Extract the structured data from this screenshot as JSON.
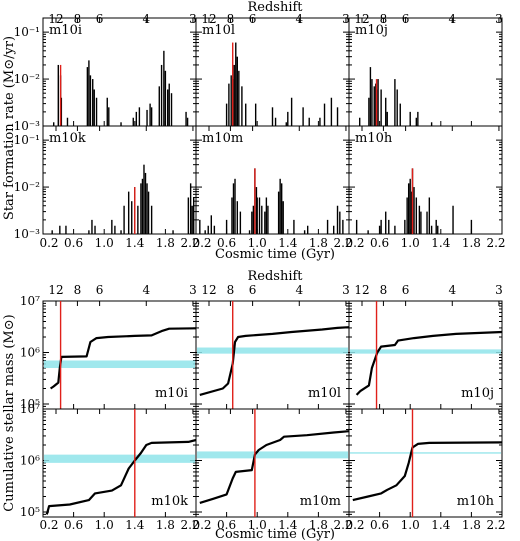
{
  "top": {
    "xlabel": "Cosmic time (Gyr)",
    "ylabel": "Star formation rate (M⊙/yr)",
    "redshift_label": "Redshift",
    "x_ticks": [
      "0.2",
      "0.6",
      "1.0",
      "1.4",
      "1.8",
      "2.2"
    ],
    "z_ticks": [
      "12",
      "8",
      "6",
      "4",
      "3"
    ],
    "y_ticks": [
      "10⁻¹",
      "10⁻²",
      "10⁻³"
    ]
  },
  "bottom": {
    "xlabel": "Cosmic time (Gyr)",
    "ylabel": "Cumulative stellar mass (M⊙)",
    "redshift_label": "Redshift",
    "x_ticks": [
      "0.2",
      "0.6",
      "1.0",
      "1.4",
      "1.8",
      "2.2"
    ],
    "z_ticks": [
      "12",
      "8",
      "6",
      "4",
      "3"
    ],
    "y_ticks": [
      "10⁷",
      "10⁶",
      "10⁵"
    ]
  },
  "chart_data": [
    {
      "type": "bar",
      "title": "",
      "xlabel": "Cosmic time (Gyr)",
      "ylabel": "Star formation rate (M⊙/yr)",
      "xlim": [
        0.2,
        2.2
      ],
      "ylim": [
        0.001,
        0.2
      ],
      "yscale": "log",
      "secondary_x": {
        "label": "Redshift",
        "ticks": [
          {
            "z": "12",
            "t": 0.37
          },
          {
            "z": "8",
            "t": 0.65
          },
          {
            "z": "6",
            "t": 0.94
          },
          {
            "z": "4",
            "t": 1.55
          },
          {
            "z": "3",
            "t": 2.16
          }
        ]
      },
      "panels": [
        {
          "name": "m10i",
          "red_t": 0.43,
          "bursts": [
            [
              0.34,
              0.0012
            ],
            [
              0.4,
              0.02
            ],
            [
              0.43,
              0.012
            ],
            [
              0.44,
              0.004
            ],
            [
              0.52,
              0.0015
            ],
            [
              0.78,
              0.018
            ],
            [
              0.8,
              0.025
            ],
            [
              0.82,
              0.012
            ],
            [
              0.85,
              0.01
            ],
            [
              0.87,
              0.006
            ],
            [
              0.9,
              0.004
            ],
            [
              1.04,
              0.004
            ],
            [
              1.06,
              0.0025
            ],
            [
              1.22,
              0.0012
            ],
            [
              1.38,
              0.0015
            ],
            [
              1.42,
              0.002
            ],
            [
              1.46,
              0.0025
            ],
            [
              1.56,
              0.0022
            ],
            [
              1.6,
              0.003
            ],
            [
              1.62,
              0.0025
            ],
            [
              1.72,
              0.007
            ],
            [
              1.75,
              0.02
            ],
            [
              1.78,
              0.04
            ],
            [
              1.8,
              0.015
            ],
            [
              1.83,
              0.006
            ],
            [
              1.85,
              0.008
            ],
            [
              1.88,
              0.005
            ],
            [
              2.07,
              0.002
            ],
            [
              2.09,
              0.0015
            ]
          ]
        },
        {
          "name": "m10l",
          "red_t": 0.68,
          "bursts": [
            [
              0.6,
              0.003
            ],
            [
              0.63,
              0.008
            ],
            [
              0.66,
              0.012
            ],
            [
              0.68,
              0.01
            ],
            [
              0.7,
              0.02
            ],
            [
              0.72,
              0.06
            ],
            [
              0.74,
              0.03
            ],
            [
              0.76,
              0.015
            ],
            [
              0.8,
              0.007
            ],
            [
              0.85,
              0.003
            ],
            [
              0.98,
              0.003
            ],
            [
              1.2,
              0.0025
            ],
            [
              1.24,
              0.0015
            ],
            [
              1.38,
              0.0012
            ],
            [
              1.4,
              0.002
            ],
            [
              1.45,
              0.004
            ],
            [
              1.6,
              0.0025
            ],
            [
              1.68,
              0.0015
            ],
            [
              1.82,
              0.0015
            ],
            [
              1.88,
              0.003
            ],
            [
              1.97,
              0.004
            ],
            [
              2.05,
              0.0025
            ]
          ]
        },
        {
          "name": "m10j",
          "red_t": 0.56,
          "bursts": [
            [
              0.34,
              0.0015
            ],
            [
              0.46,
              0.004
            ],
            [
              0.48,
              0.018
            ],
            [
              0.5,
              0.01
            ],
            [
              0.53,
              0.007
            ],
            [
              0.55,
              0.008
            ],
            [
              0.56,
              0.006
            ],
            [
              0.58,
              0.01
            ],
            [
              0.62,
              0.006
            ],
            [
              0.68,
              0.004
            ],
            [
              0.7,
              0.002
            ],
            [
              0.8,
              0.01
            ],
            [
              0.83,
              0.006
            ],
            [
              0.87,
              0.003
            ],
            [
              1.0,
              0.002
            ],
            [
              1.08,
              0.0015
            ],
            [
              1.1,
              0.002
            ],
            [
              1.28,
              0.0012
            ]
          ]
        },
        {
          "name": "m10k",
          "red_t": 1.4,
          "bursts": [
            [
              0.32,
              0.0012
            ],
            [
              0.42,
              0.0015
            ],
            [
              0.5,
              0.0015
            ],
            [
              0.8,
              0.0012
            ],
            [
              0.84,
              0.002
            ],
            [
              0.88,
              0.0015
            ],
            [
              1.1,
              0.002
            ],
            [
              1.14,
              0.0015
            ],
            [
              1.22,
              0.0012
            ],
            [
              1.26,
              0.004
            ],
            [
              1.32,
              0.008
            ],
            [
              1.36,
              0.005
            ],
            [
              1.4,
              0.01
            ],
            [
              1.44,
              0.004
            ],
            [
              1.48,
              0.012
            ],
            [
              1.5,
              0.015
            ],
            [
              1.52,
              0.03
            ],
            [
              1.54,
              0.02
            ],
            [
              1.56,
              0.012
            ],
            [
              1.58,
              0.008
            ],
            [
              1.62,
              0.004
            ],
            [
              1.9,
              0.0012
            ],
            [
              2.1,
              0.006
            ],
            [
              2.13,
              0.012
            ],
            [
              2.15,
              0.004
            ],
            [
              2.17,
              0.006
            ]
          ]
        },
        {
          "name": "m10m",
          "red_t": 0.97,
          "bursts": [
            [
              0.25,
              0.002
            ],
            [
              0.32,
              0.0012
            ],
            [
              0.36,
              0.0015
            ],
            [
              0.4,
              0.0025
            ],
            [
              0.44,
              0.0015
            ],
            [
              0.6,
              0.002
            ],
            [
              0.67,
              0.006
            ],
            [
              0.69,
              0.012
            ],
            [
              0.71,
              0.015
            ],
            [
              0.74,
              0.005
            ],
            [
              0.78,
              0.003
            ],
            [
              0.9,
              0.0012
            ],
            [
              0.93,
              0.003
            ],
            [
              0.95,
              0.004
            ],
            [
              0.97,
              0.025
            ],
            [
              0.99,
              0.01
            ],
            [
              1.0,
              0.006
            ],
            [
              1.03,
              0.006
            ],
            [
              1.06,
              0.004
            ],
            [
              1.1,
              0.003
            ],
            [
              1.12,
              0.006
            ],
            [
              1.14,
              0.004
            ],
            [
              1.28,
              0.008
            ],
            [
              1.3,
              0.015
            ],
            [
              1.32,
              0.012
            ],
            [
              1.34,
              0.005
            ],
            [
              1.48,
              0.002
            ],
            [
              1.62,
              0.0012
            ],
            [
              1.66,
              0.0015
            ],
            [
              1.92,
              0.002
            ],
            [
              2.0,
              0.0015
            ],
            [
              2.05,
              0.004
            ],
            [
              2.08,
              0.003
            ],
            [
              2.12,
              0.002
            ]
          ]
        },
        {
          "name": "m10h",
          "red_t": 1.03,
          "bursts": [
            [
              0.3,
              0.002
            ],
            [
              0.45,
              0.0012
            ],
            [
              0.6,
              0.0015
            ],
            [
              0.62,
              0.002
            ],
            [
              0.68,
              0.003
            ],
            [
              0.72,
              0.002
            ],
            [
              0.8,
              0.0015
            ],
            [
              0.93,
              0.002
            ],
            [
              0.96,
              0.006
            ],
            [
              0.98,
              0.012
            ],
            [
              1.0,
              0.015
            ],
            [
              1.02,
              0.008
            ],
            [
              1.03,
              0.025
            ],
            [
              1.05,
              0.01
            ],
            [
              1.08,
              0.006
            ],
            [
              1.12,
              0.004
            ],
            [
              1.14,
              0.003
            ],
            [
              1.22,
              0.003
            ],
            [
              1.25,
              0.006
            ],
            [
              1.28,
              0.0015
            ],
            [
              1.34,
              0.002
            ],
            [
              1.36,
              0.0015
            ],
            [
              1.56,
              0.004
            ],
            [
              1.8,
              0.002
            ]
          ]
        }
      ]
    },
    {
      "type": "line",
      "title": "",
      "xlabel": "Cosmic time (Gyr)",
      "ylabel": "Cumulative stellar mass (M⊙)",
      "xlim": [
        0.2,
        2.2
      ],
      "ylim": [
        80000,
        10000000
      ],
      "yscale": "log",
      "secondary_x": {
        "label": "Redshift",
        "ticks": [
          {
            "z": "12",
            "t": 0.37
          },
          {
            "z": "8",
            "t": 0.65
          },
          {
            "z": "6",
            "t": 0.94
          },
          {
            "z": "4",
            "t": 1.55
          },
          {
            "z": "3",
            "t": 2.16
          }
        ]
      },
      "panels": [
        {
          "name": "m10i",
          "red_t": 0.43,
          "band": [
            500000,
            700000
          ],
          "curve": [
            [
              0.3,
              200000
            ],
            [
              0.34,
              220000
            ],
            [
              0.4,
              260000
            ],
            [
              0.42,
              500000
            ],
            [
              0.44,
              820000
            ],
            [
              0.77,
              840000
            ],
            [
              0.82,
              1600000
            ],
            [
              0.9,
              1900000
            ],
            [
              1.05,
              2000000
            ],
            [
              1.4,
              2100000
            ],
            [
              1.62,
              2150000
            ],
            [
              1.75,
              2600000
            ],
            [
              1.85,
              2900000
            ],
            [
              2.2,
              2950000
            ]
          ]
        },
        {
          "name": "m10l",
          "red_t": 0.68,
          "band": [
            950000,
            1250000
          ],
          "curve": [
            [
              0.25,
              150000
            ],
            [
              0.55,
              200000
            ],
            [
              0.62,
              250000
            ],
            [
              0.68,
              600000
            ],
            [
              0.71,
              1600000
            ],
            [
              0.75,
              2000000
            ],
            [
              0.85,
              2100000
            ],
            [
              1.2,
              2300000
            ],
            [
              1.45,
              2500000
            ],
            [
              1.85,
              2800000
            ],
            [
              2.05,
              3000000
            ],
            [
              2.2,
              3100000
            ]
          ]
        },
        {
          "name": "m10j",
          "red_t": 0.56,
          "band": [
            950000,
            1150000
          ],
          "curve": [
            [
              0.3,
              150000
            ],
            [
              0.35,
              180000
            ],
            [
              0.46,
              230000
            ],
            [
              0.5,
              500000
            ],
            [
              0.57,
              1000000
            ],
            [
              0.62,
              1300000
            ],
            [
              0.8,
              1400000
            ],
            [
              0.84,
              1700000
            ],
            [
              1.05,
              1900000
            ],
            [
              1.3,
              2100000
            ],
            [
              1.6,
              2300000
            ],
            [
              2.2,
              2500000
            ]
          ]
        },
        {
          "name": "m10k",
          "red_t": 1.4,
          "band": [
            900000,
            1300000
          ],
          "curve": [
            [
              0.25,
              90000
            ],
            [
              0.28,
              130000
            ],
            [
              0.55,
              140000
            ],
            [
              0.8,
              170000
            ],
            [
              0.88,
              230000
            ],
            [
              1.1,
              260000
            ],
            [
              1.22,
              330000
            ],
            [
              1.32,
              700000
            ],
            [
              1.4,
              1000000
            ],
            [
              1.48,
              1400000
            ],
            [
              1.55,
              2000000
            ],
            [
              1.62,
              2200000
            ],
            [
              2.1,
              2300000
            ],
            [
              2.2,
              2500000
            ]
          ]
        },
        {
          "name": "m10m",
          "red_t": 0.97,
          "band": [
            1100000,
            1500000
          ],
          "curve": [
            [
              0.25,
              150000
            ],
            [
              0.42,
              180000
            ],
            [
              0.6,
              220000
            ],
            [
              0.68,
              450000
            ],
            [
              0.72,
              600000
            ],
            [
              0.93,
              650000
            ],
            [
              0.97,
              1300000
            ],
            [
              1.02,
              1600000
            ],
            [
              1.12,
              2000000
            ],
            [
              1.3,
              2500000
            ],
            [
              1.35,
              2900000
            ],
            [
              1.65,
              3100000
            ],
            [
              2.0,
              3500000
            ],
            [
              2.2,
              3700000
            ]
          ]
        },
        {
          "name": "m10h",
          "red_t": 1.03,
          "band": [
            1380000,
            1450000
          ],
          "curve": [
            [
              0.25,
              170000
            ],
            [
              0.45,
              200000
            ],
            [
              0.62,
              230000
            ],
            [
              0.7,
              270000
            ],
            [
              0.82,
              330000
            ],
            [
              0.93,
              500000
            ],
            [
              0.98,
              900000
            ],
            [
              1.03,
              1800000
            ],
            [
              1.1,
              2100000
            ],
            [
              1.25,
              2200000
            ],
            [
              2.2,
              2250000
            ]
          ]
        }
      ]
    }
  ]
}
